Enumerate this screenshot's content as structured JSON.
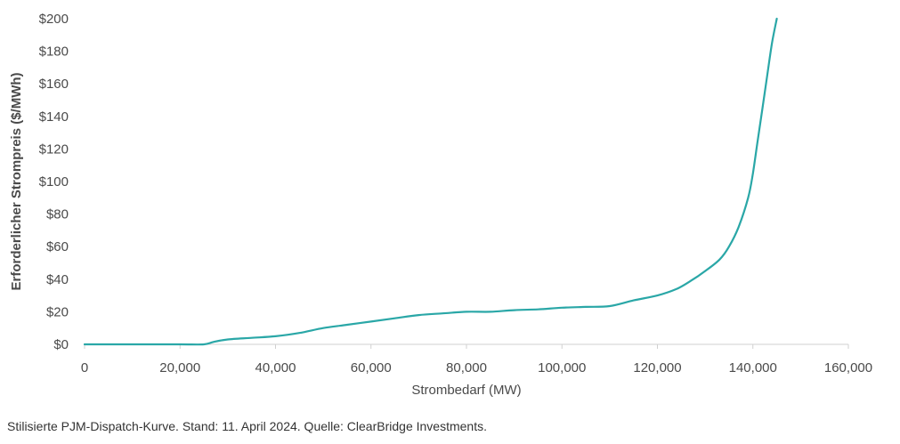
{
  "chart_data": {
    "type": "line",
    "title": "",
    "xlabel": "Strombedarf (MW)",
    "ylabel": "Erforderlicher Strompreis ($/MWh)",
    "xlim": [
      0,
      160000
    ],
    "ylim": [
      0,
      200
    ],
    "x_ticks": [
      "0",
      "20,000",
      "40,000",
      "60,000",
      "80,000",
      "100,000",
      "120,000",
      "140,000",
      "160,000"
    ],
    "y_ticks": [
      "$0",
      "$20",
      "$40",
      "$60",
      "$80",
      "$100",
      "$120",
      "$140",
      "$160",
      "$180",
      "$200"
    ],
    "grid": false,
    "legend": "none",
    "series": [
      {
        "color": "#2aa7a7",
        "x": [
          0,
          10000,
          20000,
          25000,
          27000,
          30000,
          35000,
          40000,
          45000,
          50000,
          55000,
          60000,
          65000,
          70000,
          75000,
          80000,
          85000,
          90000,
          95000,
          100000,
          105000,
          110000,
          115000,
          120000,
          124000,
          127000,
          130000,
          133000,
          135000,
          137000,
          139000,
          140000,
          141000,
          142000,
          143000,
          144000,
          145000
        ],
        "y": [
          0,
          0,
          0,
          0,
          1.5,
          3,
          4,
          5,
          7,
          10,
          12,
          14,
          16,
          18,
          19,
          20,
          20,
          21,
          21.5,
          22.5,
          23,
          23.5,
          27,
          30,
          34,
          39,
          45,
          52,
          60,
          72,
          90,
          105,
          125,
          145,
          165,
          185,
          200
        ]
      }
    ]
  },
  "footnote": "Stilisierte PJM-Dispatch-Kurve. Stand: 11. April 2024. Quelle: ClearBridge Investments."
}
